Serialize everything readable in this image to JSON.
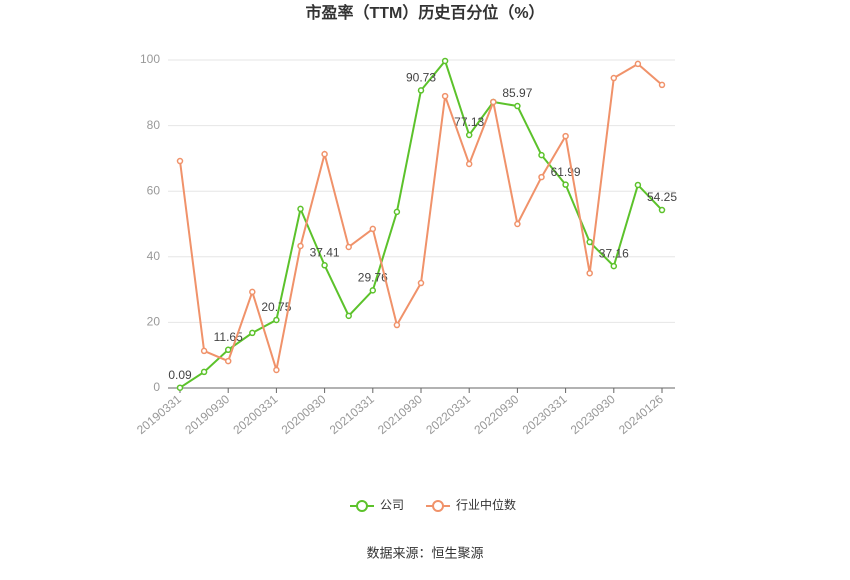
{
  "chart_data": {
    "type": "line",
    "title": "市盈率（TTM）历史百分位（%）",
    "source": "数据来源：恒生聚源",
    "categories": [
      "20190331",
      null,
      "20190930",
      null,
      "20200331",
      null,
      "20200930",
      null,
      "20210331",
      null,
      "20210930",
      null,
      "20220331",
      null,
      "20220930",
      null,
      "20230331",
      null,
      "20230930",
      null,
      "20240126"
    ],
    "series": [
      {
        "name": "公司",
        "color": "#5cc22b",
        "values": [
          0.09,
          4.9,
          11.65,
          16.8,
          20.75,
          54.6,
          37.41,
          22,
          29.76,
          53.7,
          90.73,
          99.7,
          77.13,
          87.2,
          85.97,
          71,
          61.99,
          44.5,
          37.16,
          61.9,
          54.25
        ],
        "value_labels": [
          "0.09",
          null,
          "11.65",
          null,
          "20.75",
          null,
          "37.41",
          null,
          "29.76",
          null,
          "90.73",
          null,
          "77.13",
          null,
          "85.97",
          null,
          "61.99",
          null,
          "37.16",
          null,
          "54.25"
        ]
      },
      {
        "name": "行业中位数",
        "color": "#f0926a",
        "values": [
          69.2,
          11.3,
          8.2,
          29.3,
          5.5,
          43.3,
          71.3,
          43,
          48.5,
          19.2,
          32,
          89,
          68.3,
          87.2,
          50,
          64.3,
          76.8,
          35,
          94.5,
          98.8,
          92.4
        ]
      }
    ],
    "ylim": [
      0,
      100
    ],
    "yticks": [
      0,
      20,
      40,
      60,
      80,
      100
    ],
    "grid": true
  }
}
